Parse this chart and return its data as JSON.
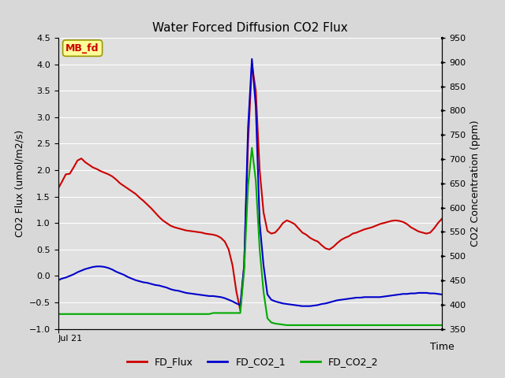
{
  "title": "Water Forced Diffusion CO2 Flux",
  "xlabel": "Time",
  "ylabel_left": "CO2 Flux (umol/m2/s)",
  "ylabel_right": "CO2 Concentration (ppm)",
  "ylim_left": [
    -1.0,
    4.5
  ],
  "ylim_right": [
    350,
    950
  ],
  "yticks_left": [
    -1.0,
    -0.5,
    0.0,
    0.5,
    1.0,
    1.5,
    2.0,
    2.5,
    3.0,
    3.5,
    4.0,
    4.5
  ],
  "yticks_right": [
    350,
    400,
    450,
    500,
    550,
    600,
    650,
    700,
    750,
    800,
    850,
    900,
    950
  ],
  "x_start_label": "Jul 21",
  "annotation_text": "MB_fd",
  "annotation_color": "#cc0000",
  "annotation_bg": "#ffff99",
  "annotation_edge": "#999900",
  "fig_bg_color": "#d8d8d8",
  "plot_bg_color": "#e0e0e0",
  "grid_color": "#ffffff",
  "n_points": 100,
  "fd_flux_color": "#cc0000",
  "fd_co2_1_color": "#0000cc",
  "fd_co2_2_color": "#00aa00",
  "legend_labels": [
    "FD_Flux",
    "FD_CO2_1",
    "FD_CO2_2"
  ],
  "fd_flux": [
    1.65,
    1.78,
    1.92,
    1.93,
    2.05,
    2.18,
    2.22,
    2.15,
    2.1,
    2.05,
    2.02,
    1.98,
    1.95,
    1.92,
    1.88,
    1.82,
    1.75,
    1.7,
    1.65,
    1.6,
    1.55,
    1.48,
    1.42,
    1.35,
    1.28,
    1.2,
    1.12,
    1.05,
    1.0,
    0.95,
    0.92,
    0.9,
    0.88,
    0.86,
    0.85,
    0.84,
    0.83,
    0.82,
    0.8,
    0.79,
    0.78,
    0.76,
    0.72,
    0.65,
    0.5,
    0.2,
    -0.3,
    -0.65,
    0.2,
    2.5,
    4.0,
    3.5,
    2.0,
    1.2,
    0.85,
    0.8,
    0.82,
    0.9,
    1.0,
    1.05,
    1.02,
    0.98,
    0.9,
    0.82,
    0.78,
    0.72,
    0.68,
    0.65,
    0.58,
    0.52,
    0.5,
    0.55,
    0.62,
    0.68,
    0.72,
    0.75,
    0.8,
    0.82,
    0.85,
    0.88,
    0.9,
    0.92,
    0.95,
    0.98,
    1.0,
    1.02,
    1.04,
    1.05,
    1.04,
    1.02,
    0.98,
    0.92,
    0.88,
    0.84,
    0.82,
    0.8,
    0.82,
    0.9,
    1.0,
    1.08
  ],
  "fd_co2_1": [
    -0.08,
    -0.05,
    -0.03,
    0.0,
    0.03,
    0.07,
    0.1,
    0.13,
    0.15,
    0.17,
    0.18,
    0.18,
    0.17,
    0.15,
    0.12,
    0.08,
    0.05,
    0.02,
    -0.02,
    -0.05,
    -0.08,
    -0.1,
    -0.12,
    -0.13,
    -0.15,
    -0.17,
    -0.18,
    -0.2,
    -0.22,
    -0.25,
    -0.27,
    -0.28,
    -0.3,
    -0.32,
    -0.33,
    -0.34,
    -0.35,
    -0.36,
    -0.37,
    -0.38,
    -0.38,
    -0.39,
    -0.4,
    -0.42,
    -0.45,
    -0.48,
    -0.52,
    -0.55,
    0.2,
    2.8,
    4.1,
    3.2,
    1.0,
    0.2,
    -0.35,
    -0.45,
    -0.48,
    -0.5,
    -0.52,
    -0.53,
    -0.54,
    -0.55,
    -0.56,
    -0.57,
    -0.57,
    -0.57,
    -0.56,
    -0.55,
    -0.53,
    -0.52,
    -0.5,
    -0.48,
    -0.46,
    -0.45,
    -0.44,
    -0.43,
    -0.42,
    -0.41,
    -0.41,
    -0.4,
    -0.4,
    -0.4,
    -0.4,
    -0.4,
    -0.39,
    -0.38,
    -0.37,
    -0.36,
    -0.35,
    -0.34,
    -0.34,
    -0.33,
    -0.33,
    -0.32,
    -0.32,
    -0.32,
    -0.33,
    -0.33,
    -0.34,
    -0.35
  ],
  "fd_co2_2": [
    -0.72,
    -0.72,
    -0.72,
    -0.72,
    -0.72,
    -0.72,
    -0.72,
    -0.72,
    -0.72,
    -0.72,
    -0.72,
    -0.72,
    -0.72,
    -0.72,
    -0.72,
    -0.72,
    -0.72,
    -0.72,
    -0.72,
    -0.72,
    -0.72,
    -0.72,
    -0.72,
    -0.72,
    -0.72,
    -0.72,
    -0.72,
    -0.72,
    -0.72,
    -0.72,
    -0.72,
    -0.72,
    -0.72,
    -0.72,
    -0.72,
    -0.72,
    -0.72,
    -0.72,
    -0.72,
    -0.72,
    -0.7,
    -0.7,
    -0.7,
    -0.7,
    -0.7,
    -0.7,
    -0.7,
    -0.7,
    0.1,
    1.7,
    2.42,
    1.8,
    0.5,
    -0.3,
    -0.8,
    -0.88,
    -0.9,
    -0.91,
    -0.92,
    -0.93,
    -0.93,
    -0.93,
    -0.93,
    -0.93,
    -0.93,
    -0.93,
    -0.93,
    -0.93,
    -0.93,
    -0.93,
    -0.93,
    -0.93,
    -0.93,
    -0.93,
    -0.93,
    -0.93,
    -0.93,
    -0.93,
    -0.93,
    -0.93,
    -0.93,
    -0.93,
    -0.93,
    -0.93,
    -0.93,
    -0.93,
    -0.93,
    -0.93,
    -0.93,
    -0.93,
    -0.93,
    -0.93,
    -0.93,
    -0.93,
    -0.93,
    -0.93,
    -0.93,
    -0.93,
    -0.93,
    -0.93
  ]
}
